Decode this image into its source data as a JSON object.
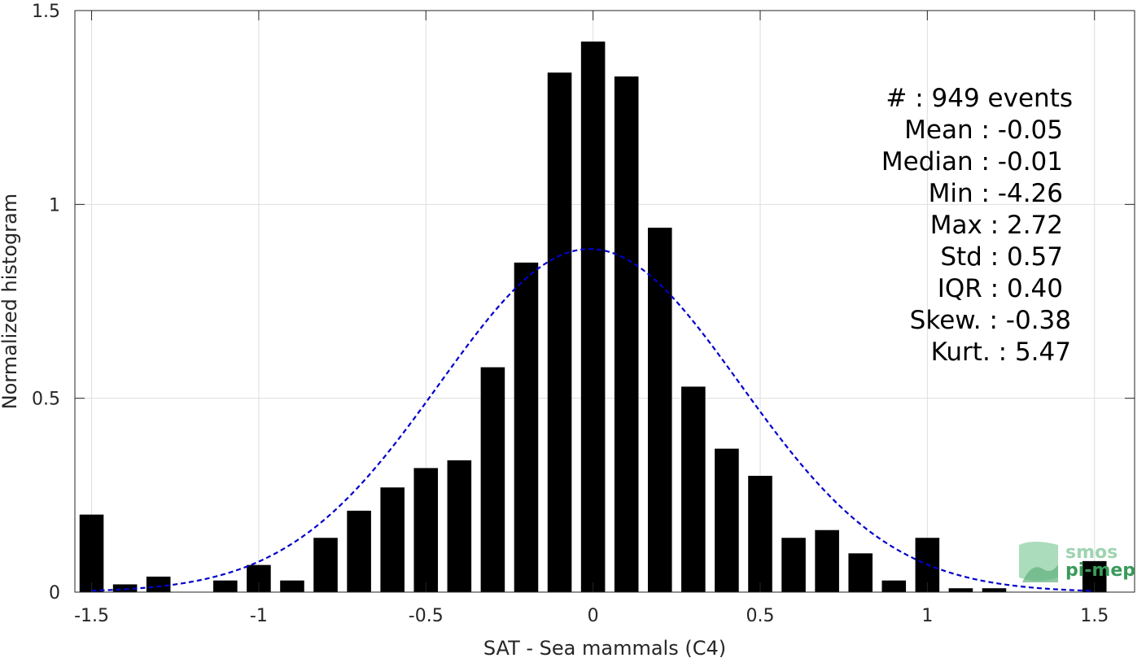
{
  "chart_data": {
    "type": "bar",
    "xlabel": "SAT - Sea mammals (C4)",
    "ylabel": "Normalized histogram",
    "xlim": [
      -1.5,
      1.5
    ],
    "ylim": [
      0,
      1.5
    ],
    "grid": true,
    "x_ticks": [
      "-1.5",
      "-1",
      "-0.5",
      "0",
      "0.5",
      "1",
      "1.5"
    ],
    "y_ticks": [
      "0",
      "0.5",
      "1",
      "1.5"
    ],
    "bars": {
      "centers": [
        -1.5,
        -1.4,
        -1.3,
        -1.2,
        -1.1,
        -1.0,
        -0.9,
        -0.8,
        -0.7,
        -0.6,
        -0.5,
        -0.4,
        -0.3,
        -0.2,
        -0.1,
        0.0,
        0.1,
        0.2,
        0.3,
        0.4,
        0.5,
        0.6,
        0.7,
        0.8,
        0.9,
        1.0,
        1.1,
        1.2,
        1.3,
        1.4,
        1.5
      ],
      "values": [
        0.2,
        0.02,
        0.04,
        0.0,
        0.03,
        0.07,
        0.03,
        0.14,
        0.21,
        0.27,
        0.32,
        0.34,
        0.58,
        0.85,
        1.34,
        1.42,
        1.33,
        0.94,
        0.53,
        0.37,
        0.3,
        0.14,
        0.16,
        0.1,
        0.03,
        0.14,
        0.01,
        0.01,
        0.0,
        0.0,
        0.08
      ],
      "color": "#000000"
    },
    "fit": {
      "kind": "normal",
      "mean": -0.01,
      "peak": 0.885,
      "std": 0.45,
      "color": "#0000cc",
      "style": "dashed"
    },
    "stats": [
      "#  : 949 events",
      "Mean : -0.05",
      "Median : -0.01",
      "Min : -4.26",
      "Max : 2.72",
      "Std : 0.57",
      "IQR : 0.40",
      "Skew. : -0.38",
      "Kurt. : 5.47"
    ]
  },
  "logo": {
    "line1": "smos",
    "line2": "pi-mep",
    "color": "#3a9a5a"
  }
}
